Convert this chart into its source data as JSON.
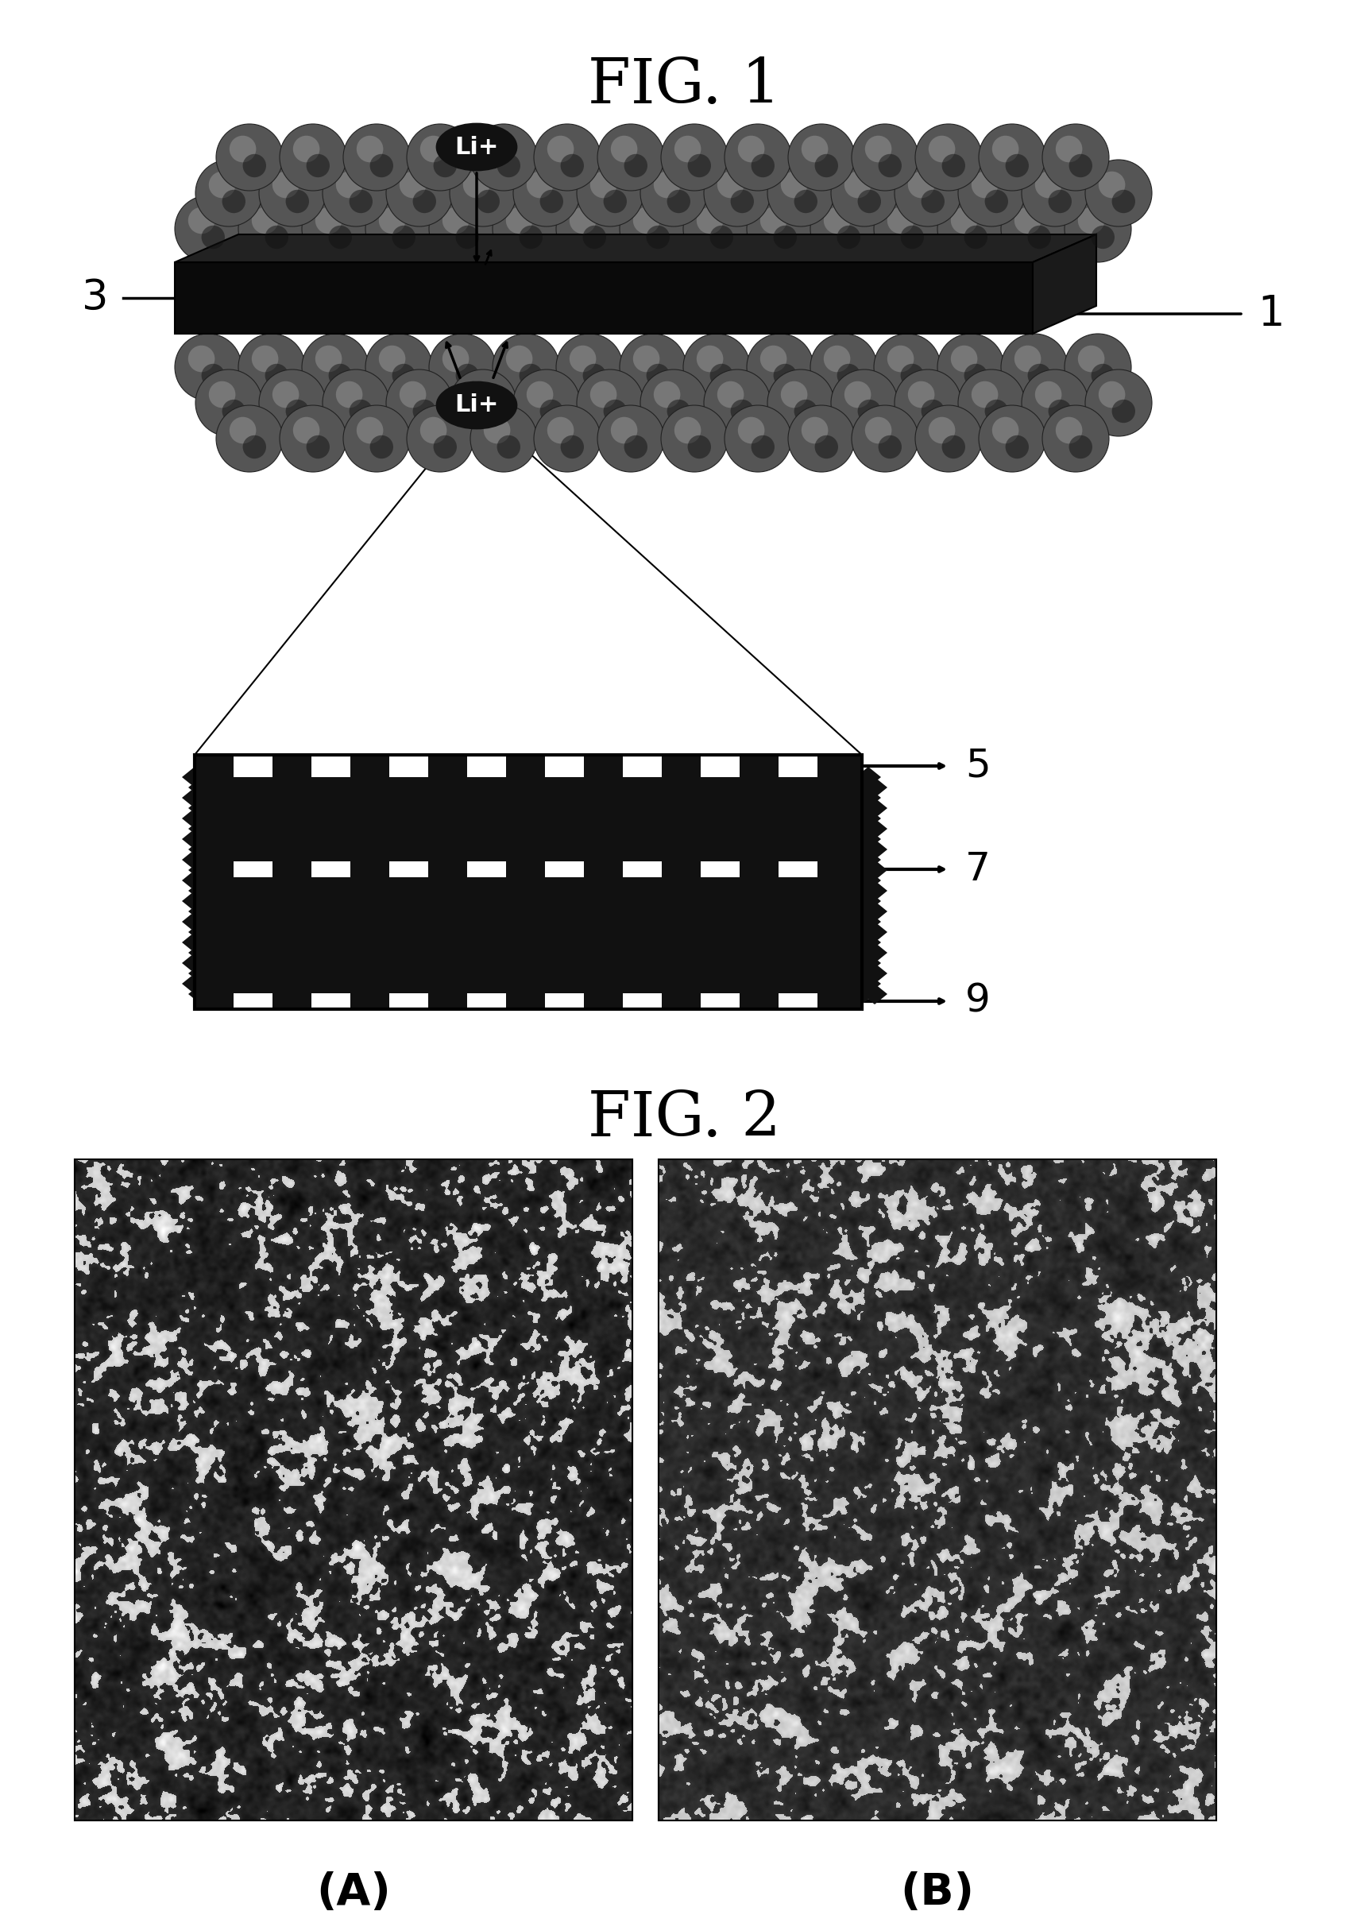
{
  "fig_title": "FIG. 1",
  "fig2_title": "FIG. 2",
  "label_A": "(A)",
  "label_B": "(B)",
  "label_1": "1",
  "label_3": "3",
  "label_5": "5",
  "label_7": "7",
  "label_9": "9",
  "label_li_top": "Li+",
  "label_li_bottom": "Li+",
  "bg_color": "#ffffff",
  "black": "#000000",
  "sphere_dark": "#444444",
  "sphere_mid": "#777777",
  "sphere_light": "#aaaaaa",
  "bar_dark": "#111111"
}
